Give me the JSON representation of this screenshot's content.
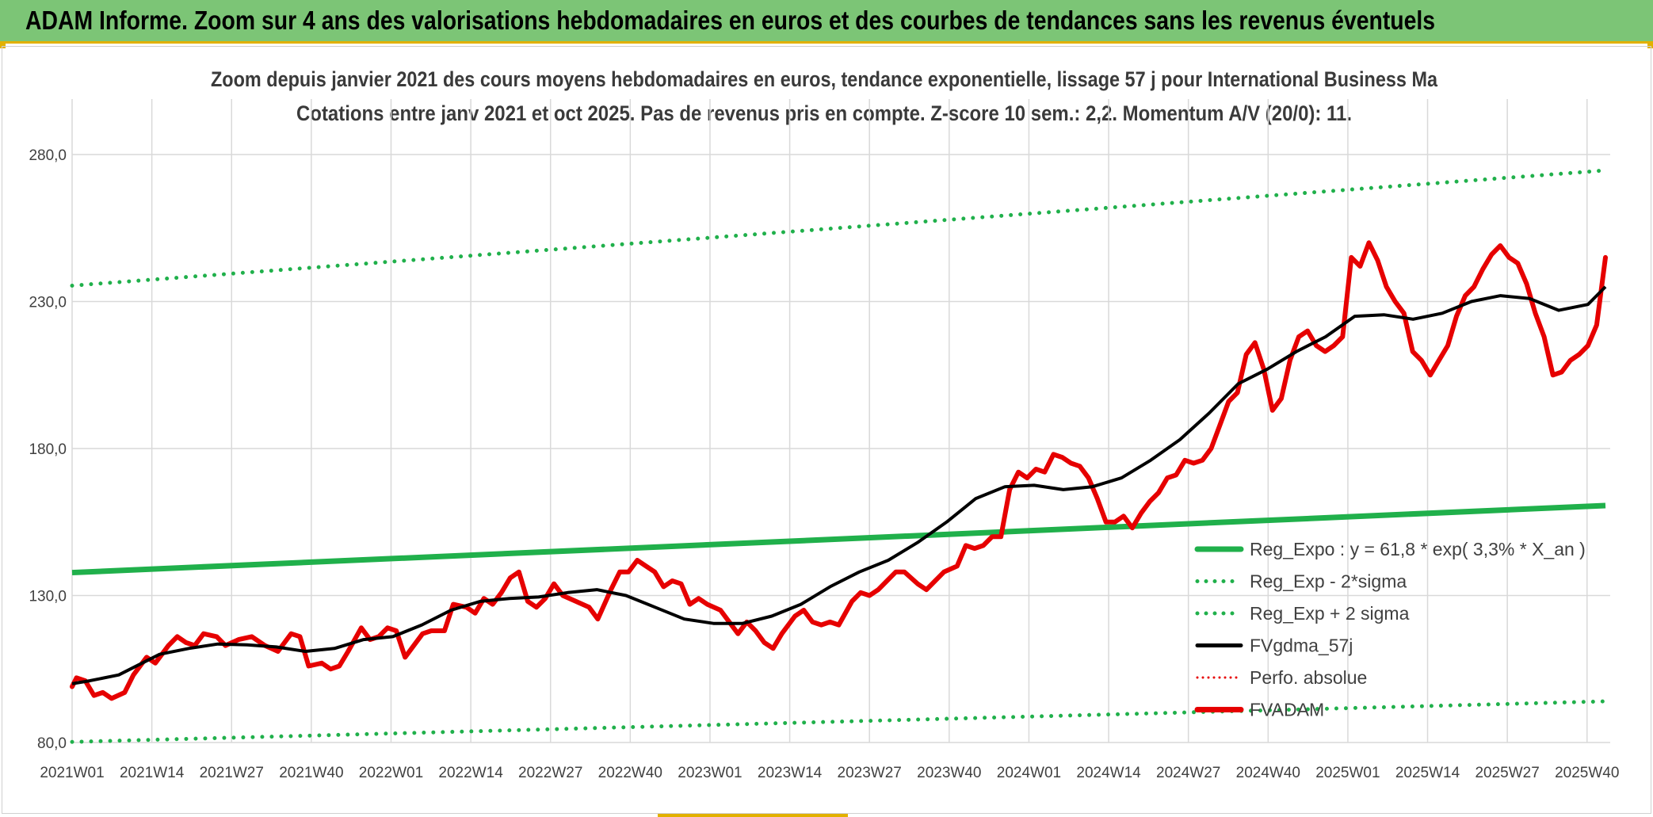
{
  "header": {
    "title": "ADAM Informe. Zoom sur 4 ans des valorisations hebdomadaires en euros et des courbes de tendances sans les revenus éventuels"
  },
  "chart_data": {
    "type": "line",
    "title_line1": "Zoom depuis janvier 2021 des cours moyens hebdomadaires en euros, tendance exponentielle, lissage 57 j pour International Business Ma",
    "title_line2": "Cotations entre janv 2021 et oct 2025. Pas de revenus pris en compte. Z-score 10 sem.: 2,2. Momentum A/V (20/0): 11.",
    "ylim": [
      80,
      280
    ],
    "yticks": [
      "80,0",
      "130,0",
      "180,0",
      "230,0",
      "280,0"
    ],
    "xtick_labels": [
      "2021W01",
      "2021W14",
      "2021W27",
      "2021W40",
      "2022W01",
      "2022W14",
      "2022W27",
      "2022W40",
      "2023W01",
      "2023W14",
      "2023W27",
      "2023W40",
      "2024W01",
      "2024W14",
      "2024W27",
      "2024W40",
      "2025W01",
      "2025W14",
      "2025W27",
      "2025W40"
    ],
    "grid": true,
    "legend_position": "lower-right",
    "colors": {
      "reg_expo": "#20b04b",
      "reg_bands": "#20b04b",
      "fvgdma": "#000000",
      "perfo": "#e60000",
      "fvadam": "#e60000"
    },
    "series": [
      {
        "name": "Reg_Expo : y = 61,8 * exp( 3,3% *  X_an )",
        "style": "solid-thick",
        "start": 137.8,
        "end": 160.6
      },
      {
        "name": "Reg_Exp - 2*sigma",
        "style": "dotted",
        "start": 80.2,
        "end": 94.0
      },
      {
        "name": "Reg_Exp + 2 sigma",
        "style": "dotted",
        "start": 235.4,
        "end": 274.6
      },
      {
        "name": "FVgdma_57j",
        "style": "solid",
        "points": [
          [
            0,
            100
          ],
          [
            3,
            101
          ],
          [
            8,
            103
          ],
          [
            12,
            107
          ],
          [
            15,
            110
          ],
          [
            20,
            112
          ],
          [
            25,
            113.5
          ],
          [
            30,
            113.2
          ],
          [
            35,
            112.5
          ],
          [
            40,
            111
          ],
          [
            45,
            112
          ],
          [
            50,
            115
          ],
          [
            55,
            116
          ],
          [
            60,
            120
          ],
          [
            65,
            125
          ],
          [
            70,
            128
          ],
          [
            75,
            129
          ],
          [
            80,
            129.5
          ],
          [
            85,
            131
          ],
          [
            90,
            132
          ],
          [
            95,
            130
          ],
          [
            100,
            126
          ],
          [
            105,
            122
          ],
          [
            110,
            120.5
          ],
          [
            115,
            120.5
          ],
          [
            120,
            123
          ],
          [
            125,
            127
          ],
          [
            130,
            133
          ],
          [
            135,
            138
          ],
          [
            140,
            142
          ],
          [
            145,
            148
          ],
          [
            150,
            155
          ],
          [
            155,
            163
          ],
          [
            160,
            167
          ],
          [
            165,
            167.5
          ],
          [
            170,
            166
          ],
          [
            175,
            167
          ],
          [
            180,
            170
          ],
          [
            185,
            176
          ],
          [
            190,
            183
          ],
          [
            195,
            192
          ],
          [
            200,
            202
          ],
          [
            205,
            207
          ],
          [
            210,
            213
          ],
          [
            215,
            218
          ],
          [
            220,
            225
          ],
          [
            225,
            225.5
          ],
          [
            230,
            224
          ],
          [
            235,
            226
          ],
          [
            240,
            230
          ],
          [
            245,
            232
          ],
          [
            250,
            231
          ],
          [
            255,
            227
          ],
          [
            260,
            229
          ],
          [
            263,
            235
          ]
        ]
      },
      {
        "name": "Perfo. absolue",
        "style": "dotted",
        "points": []
      },
      {
        "name": "FVADAM",
        "style": "solid-thick",
        "points": [
          [
            0,
            99
          ],
          [
            1,
            102
          ],
          [
            3,
            101
          ],
          [
            5,
            96
          ],
          [
            7,
            97
          ],
          [
            9,
            95
          ],
          [
            12,
            97
          ],
          [
            14,
            103
          ],
          [
            17,
            109
          ],
          [
            19,
            107
          ],
          [
            22,
            113
          ],
          [
            24,
            116
          ],
          [
            26,
            114
          ],
          [
            28,
            113
          ],
          [
            30,
            117
          ],
          [
            33,
            116
          ],
          [
            35,
            113
          ],
          [
            38,
            115
          ],
          [
            41,
            116
          ],
          [
            44,
            113
          ],
          [
            47,
            111
          ],
          [
            50,
            117
          ],
          [
            52,
            116
          ],
          [
            54,
            106
          ],
          [
            57,
            107
          ],
          [
            59,
            105
          ],
          [
            61,
            106
          ],
          [
            63,
            111
          ],
          [
            66,
            119
          ],
          [
            68,
            115
          ],
          [
            70,
            116
          ],
          [
            72,
            119
          ],
          [
            74,
            118
          ],
          [
            76,
            109
          ],
          [
            78,
            113
          ],
          [
            80,
            117
          ],
          [
            82,
            118
          ],
          [
            85,
            118
          ],
          [
            87,
            127
          ],
          [
            90,
            126
          ],
          [
            92,
            124
          ],
          [
            94,
            129
          ],
          [
            96,
            127
          ],
          [
            98,
            131
          ],
          [
            100,
            136
          ],
          [
            102,
            138
          ],
          [
            104,
            128
          ],
          [
            106,
            126
          ],
          [
            108,
            129
          ],
          [
            110,
            134
          ],
          [
            112,
            130
          ],
          [
            115,
            128
          ],
          [
            118,
            126
          ],
          [
            120,
            122
          ],
          [
            123,
            132
          ],
          [
            125,
            138
          ],
          [
            127,
            138
          ],
          [
            129,
            142
          ],
          [
            131,
            140
          ],
          [
            133,
            138
          ],
          [
            135,
            133
          ],
          [
            137,
            135
          ],
          [
            139,
            134
          ],
          [
            141,
            127
          ],
          [
            143,
            129
          ],
          [
            145,
            127
          ],
          [
            148,
            125
          ],
          [
            150,
            121
          ],
          [
            152,
            117
          ],
          [
            154,
            121
          ],
          [
            156,
            118
          ],
          [
            158,
            114
          ],
          [
            160,
            112
          ],
          [
            162,
            117
          ],
          [
            165,
            123
          ],
          [
            167,
            125
          ],
          [
            169,
            121
          ],
          [
            171,
            120
          ],
          [
            173,
            121
          ],
          [
            175,
            120
          ],
          [
            178,
            128
          ],
          [
            180,
            131
          ],
          [
            182,
            130
          ],
          [
            184,
            132
          ],
          [
            186,
            135
          ],
          [
            188,
            138
          ],
          [
            190,
            138
          ],
          [
            193,
            134
          ],
          [
            195,
            132
          ],
          [
            197,
            135
          ],
          [
            199,
            138
          ],
          [
            202,
            140
          ],
          [
            204,
            147
          ],
          [
            206,
            146
          ],
          [
            208,
            147
          ],
          [
            210,
            150
          ],
          [
            212,
            150
          ],
          [
            214,
            166
          ],
          [
            216,
            172
          ],
          [
            218,
            170
          ],
          [
            220,
            173
          ],
          [
            222,
            172
          ],
          [
            224,
            178
          ],
          [
            226,
            177
          ],
          [
            228,
            175
          ],
          [
            230,
            174
          ],
          [
            232,
            170
          ],
          [
            234,
            163
          ],
          [
            236,
            155
          ],
          [
            238,
            155
          ],
          [
            240,
            157
          ],
          [
            242,
            153
          ],
          [
            244,
            158
          ],
          [
            246,
            162
          ],
          [
            248,
            165
          ],
          [
            250,
            170
          ],
          [
            252,
            171
          ],
          [
            254,
            176
          ],
          [
            256,
            175
          ],
          [
            258,
            176
          ],
          [
            260,
            180
          ],
          [
            262,
            188
          ],
          [
            264,
            196
          ],
          [
            266,
            199
          ],
          [
            268,
            212
          ],
          [
            270,
            216
          ],
          [
            272,
            207
          ],
          [
            274,
            193
          ],
          [
            276,
            197
          ],
          [
            278,
            210
          ],
          [
            280,
            218
          ],
          [
            282,
            220
          ],
          [
            284,
            215
          ],
          [
            286,
            213
          ],
          [
            288,
            215
          ],
          [
            290,
            218
          ],
          [
            292,
            245
          ],
          [
            294,
            242
          ],
          [
            296,
            250
          ],
          [
            298,
            244
          ],
          [
            300,
            235
          ],
          [
            302,
            230
          ],
          [
            304,
            226
          ],
          [
            306,
            213
          ],
          [
            308,
            210
          ],
          [
            310,
            205
          ],
          [
            312,
            210
          ],
          [
            314,
            215
          ],
          [
            316,
            225
          ],
          [
            318,
            232
          ],
          [
            320,
            235
          ],
          [
            322,
            241
          ],
          [
            324,
            246
          ],
          [
            326,
            249
          ],
          [
            328,
            245
          ],
          [
            330,
            243
          ],
          [
            332,
            236
          ],
          [
            334,
            226
          ],
          [
            336,
            218
          ],
          [
            338,
            205
          ],
          [
            340,
            206
          ],
          [
            342,
            210
          ],
          [
            344,
            212
          ],
          [
            346,
            215
          ],
          [
            348,
            222
          ],
          [
            350,
            245
          ]
        ]
      }
    ]
  }
}
